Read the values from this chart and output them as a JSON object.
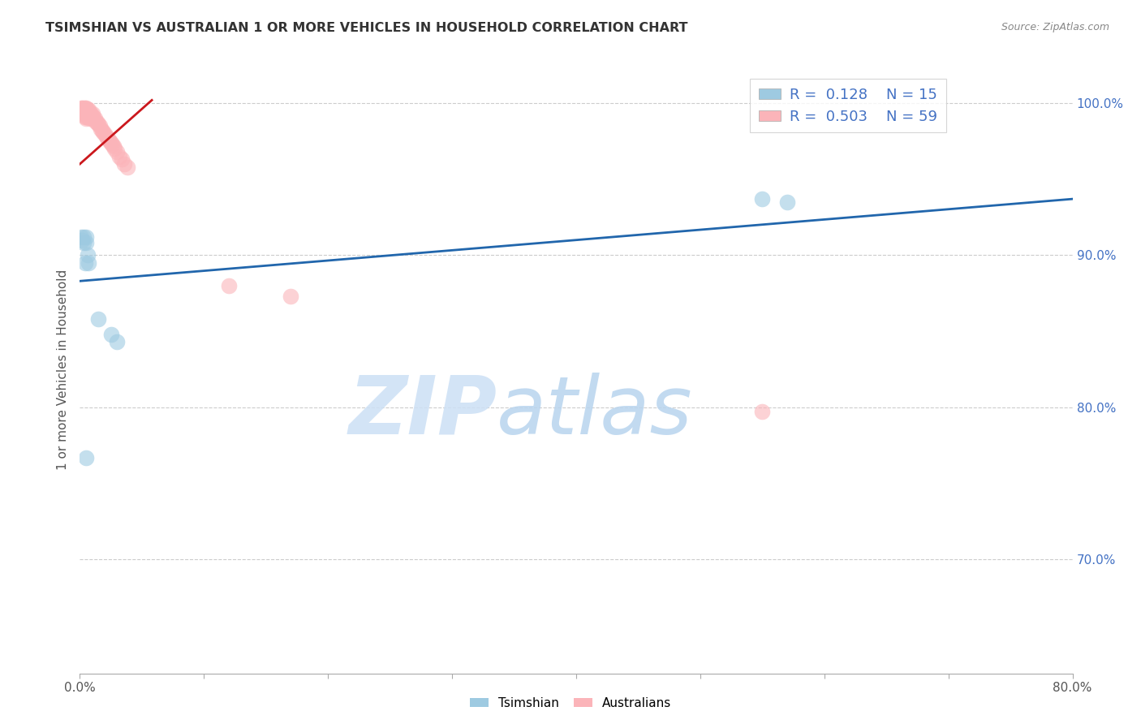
{
  "title": "TSIMSHIAN VS AUSTRALIAN 1 OR MORE VEHICLES IN HOUSEHOLD CORRELATION CHART",
  "source": "Source: ZipAtlas.com",
  "ylabel": "1 or more Vehicles in Household",
  "watermark_zip": "ZIP",
  "watermark_atlas": "atlas",
  "legend_blue_R": "0.128",
  "legend_blue_N": "15",
  "legend_pink_R": "0.503",
  "legend_pink_N": "59",
  "legend_label_blue": "Tsimshian",
  "legend_label_pink": "Australians",
  "tsimshian_x": [
    0.001,
    0.002,
    0.003,
    0.003,
    0.004,
    0.005,
    0.005,
    0.006,
    0.007,
    0.55,
    0.57,
    0.015,
    0.025,
    0.03,
    0.005
  ],
  "tsimshian_y": [
    0.912,
    0.91,
    0.912,
    0.908,
    0.895,
    0.912,
    0.908,
    0.9,
    0.895,
    0.937,
    0.935,
    0.858,
    0.848,
    0.843,
    0.767
  ],
  "australian_x": [
    0.001,
    0.001,
    0.001,
    0.002,
    0.002,
    0.002,
    0.003,
    0.003,
    0.003,
    0.003,
    0.004,
    0.004,
    0.004,
    0.004,
    0.004,
    0.005,
    0.005,
    0.005,
    0.005,
    0.005,
    0.006,
    0.006,
    0.006,
    0.007,
    0.007,
    0.007,
    0.008,
    0.008,
    0.008,
    0.009,
    0.009,
    0.01,
    0.01,
    0.011,
    0.012,
    0.013,
    0.014,
    0.015,
    0.016,
    0.017,
    0.018,
    0.019,
    0.02,
    0.021,
    0.022,
    0.023,
    0.024,
    0.025,
    0.026,
    0.027,
    0.028,
    0.03,
    0.032,
    0.034,
    0.036,
    0.038,
    0.12,
    0.17,
    0.55
  ],
  "australian_y": [
    0.997,
    0.996,
    0.995,
    0.997,
    0.996,
    0.995,
    0.997,
    0.996,
    0.995,
    0.993,
    0.997,
    0.996,
    0.995,
    0.993,
    0.991,
    0.997,
    0.996,
    0.993,
    0.991,
    0.99,
    0.996,
    0.993,
    0.991,
    0.996,
    0.993,
    0.991,
    0.993,
    0.991,
    0.99,
    0.993,
    0.991,
    0.993,
    0.99,
    0.991,
    0.99,
    0.988,
    0.987,
    0.986,
    0.985,
    0.983,
    0.982,
    0.981,
    0.98,
    0.978,
    0.977,
    0.976,
    0.975,
    0.974,
    0.973,
    0.972,
    0.97,
    0.968,
    0.965,
    0.963,
    0.96,
    0.958,
    0.88,
    0.873,
    0.797
  ],
  "blue_line_x": [
    0.0,
    0.8
  ],
  "blue_line_y": [
    0.883,
    0.937
  ],
  "pink_line_x": [
    0.0,
    0.058
  ],
  "pink_line_y": [
    0.96,
    1.002
  ],
  "blue_scatter_color": "#9ecae1",
  "pink_scatter_color": "#fbb4b9",
  "blue_line_color": "#2166ac",
  "pink_line_color": "#cb181d",
  "xlim": [
    0.0,
    0.8
  ],
  "ylim": [
    0.625,
    1.025
  ],
  "yticks": [
    0.7,
    0.8,
    0.9,
    1.0
  ],
  "ytick_labels": [
    "70.0%",
    "80.0%",
    "90.0%",
    "100.0%"
  ],
  "xticks": [
    0.0,
    0.1,
    0.2,
    0.3,
    0.4,
    0.5,
    0.6,
    0.7,
    0.8
  ],
  "xtick_labels": [
    "0.0%",
    "",
    "",
    "",
    "",
    "",
    "",
    "",
    "80.0%"
  ],
  "grid_color": "#cccccc",
  "bg_color": "#ffffff"
}
